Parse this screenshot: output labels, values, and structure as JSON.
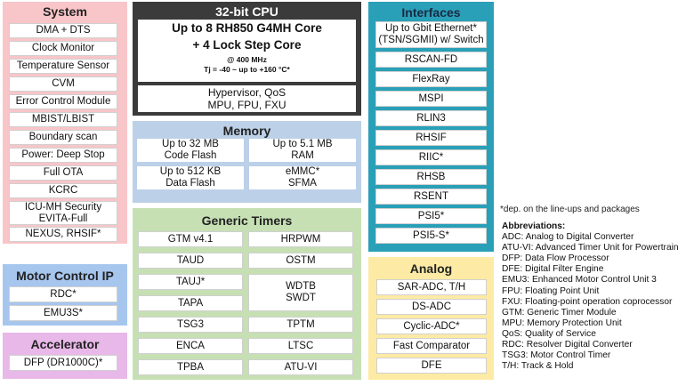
{
  "system": {
    "title": "System",
    "items": [
      "DMA + DTS",
      "Clock Monitor",
      "Temperature Sensor",
      "CVM",
      "Error Control Module",
      "MBIST/LBIST",
      "Boundary scan",
      "Power: Deep Stop",
      "Full OTA",
      "KCRC",
      "ICU-MH Security",
      "EVITA-Full",
      "NEXUS, RHSIF*"
    ]
  },
  "motor_control": {
    "title": "Motor Control IP",
    "items": [
      "RDC*",
      "EMU3S*"
    ]
  },
  "accelerator": {
    "title": "Accelerator",
    "items": [
      "DFP (DR1000C)*"
    ]
  },
  "cpu": {
    "title": "32-bit CPU",
    "core_line1": "Up to 8 RH850 G4MH Core",
    "core_line2": "+ 4 Lock Step Core",
    "freq": "@ 400 MHz",
    "tj": "Tj = -40 ~  up to +160 °C*",
    "features_line1": "Hypervisor, QoS",
    "features_line2": "MPU, FPU, FXU"
  },
  "memory": {
    "title": "Memory",
    "cells": [
      {
        "line1": "Up to 32 MB",
        "line2": "Code Flash"
      },
      {
        "line1": "Up to 5.1 MB",
        "line2": "RAM"
      },
      {
        "line1": "Up to 512 KB",
        "line2": "Data Flash"
      },
      {
        "line1": "eMMC*",
        "line2": "SFMA"
      }
    ]
  },
  "timers": {
    "title": "Generic Timers",
    "left": [
      "GTM v4.1",
      "TAUD",
      "TAUJ*",
      "TAPA",
      "TSG3",
      "ENCA",
      "TPBA"
    ],
    "right": [
      "HRPWM",
      "OSTM",
      "WDTB",
      "SWDT",
      "TPTM",
      "LTSC",
      "ATU-VI"
    ]
  },
  "interfaces": {
    "title": "Interfaces",
    "first_line1": "Up to Gbit Ethernet*",
    "first_line2": "(TSN/SGMII) w/ Switch",
    "items": [
      "RSCAN-FD",
      "FlexRay",
      "MSPI",
      "RLIN3",
      "RHSIF",
      "RIIC*",
      "RHSB",
      "RSENT",
      "PSI5*",
      "PSI5-S*"
    ]
  },
  "analog": {
    "title": "Analog",
    "items": [
      "SAR-ADC, T/H",
      "DS-ADC",
      "Cyclic-ADC*",
      "Fast Comparator",
      "DFE"
    ]
  },
  "footnote": "*dep. on the line-ups  and packages",
  "abbreviations": {
    "title": "Abbreviations:",
    "items": [
      "ADC: Analog to Digital Converter",
      "ATU-VI: Advanced Timer Unit for Powertrain",
      "DFP: Data Flow Processor",
      "DFE: Digital Filter Engine",
      "EMU3: Enhanced Motor Control Unit 3",
      "FPU: Floating Point Unit",
      "FXU: Floating-point operation coprocessor",
      "GTM: Generic Timer Module",
      "MPU: Memory Protection Unit",
      "QoS: Quality of Service",
      "RDC: Resolver Digital Converter",
      "TSG3: Motor Control Timer",
      "T/H: Track & Hold"
    ]
  }
}
